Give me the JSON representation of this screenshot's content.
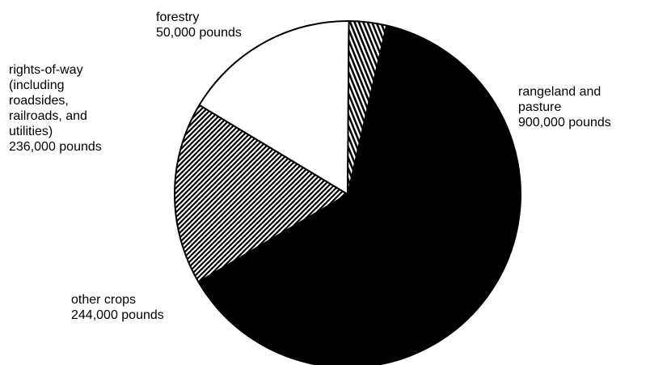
{
  "chart_data": {
    "type": "pie",
    "title": "",
    "start_angle_deg": 13,
    "direction": "clockwise",
    "slices": [
      {
        "label_lines": [
          "rangeland and",
          "pasture"
        ],
        "value": 900000,
        "value_text": "900,000 pounds",
        "fill": "solid",
        "color": "#000000"
      },
      {
        "label_lines": [
          "other crops"
        ],
        "value": 244000,
        "value_text": "244,000 pounds",
        "fill": "diagonal-hatch",
        "color": "#000000"
      },
      {
        "label_lines": [
          "rights-of-way",
          "(including",
          "roadsides,",
          "railroads, and",
          "utilities)"
        ],
        "value": 236000,
        "value_text": "236,000 pounds",
        "fill": "none",
        "color": "#ffffff"
      },
      {
        "label_lines": [
          "forestry"
        ],
        "value": 50000,
        "value_text": "50,000 pounds",
        "fill": "vertical-stripes",
        "color": "#000000"
      }
    ]
  }
}
